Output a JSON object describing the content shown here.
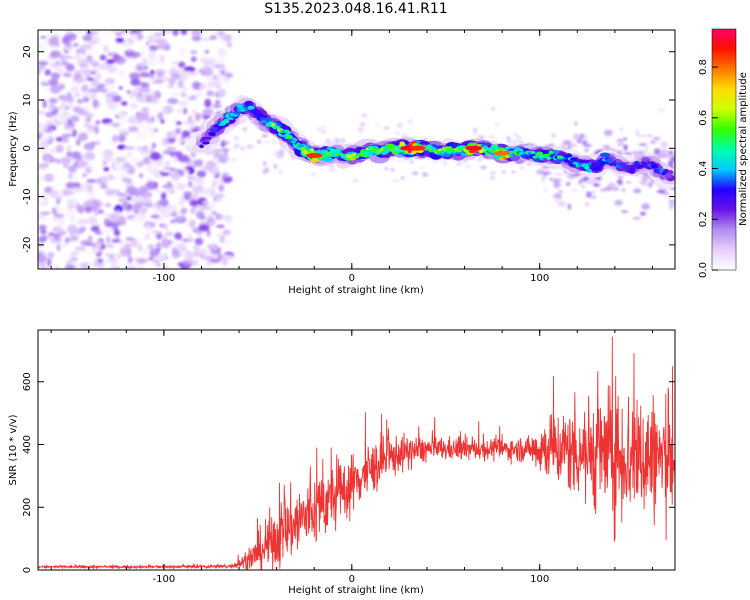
{
  "figure": {
    "title": "S135.2023.048.16.41.R11"
  },
  "colors": {
    "snr_line": "#ee3333",
    "frame": "#000000",
    "background": "#ffffff"
  },
  "chart_data": [
    {
      "type": "heatmap",
      "title": "S135.2023.048.16.41.R11",
      "xlabel": "Height of straight line (km)",
      "ylabel": "Frequency (Hz)",
      "xlim": [
        -167,
        172
      ],
      "ylim": [
        -25,
        24.5
      ],
      "x_ticks": [
        -100,
        0,
        100
      ],
      "x_tick_labels": [
        "-100",
        "0",
        "100"
      ],
      "y_ticks": [
        -20,
        -10,
        0,
        10,
        20
      ],
      "y_tick_labels": [
        "-20",
        "-10",
        "0",
        "10",
        "20"
      ],
      "grid": false,
      "colorbar": {
        "label": "Normalized spectral amplitude",
        "range": [
          0.0,
          0.95
        ],
        "ticks": [
          0.0,
          0.2,
          0.4,
          0.6,
          0.8
        ],
        "tick_labels": [
          "0.0",
          "0.2",
          "0.4",
          "0.6",
          "0.8"
        ],
        "colormap": [
          "#ffffff",
          "#e6d0fb",
          "#b28cf0",
          "#6a14e6",
          "#2200ff",
          "#00ccff",
          "#00ffaa",
          "#33ff00",
          "#ccff00",
          "#ffdd00",
          "#ff7700",
          "#ff1100",
          "#ff0066"
        ]
      },
      "signal_track": [
        {
          "x": -80,
          "y": 1.0,
          "a": 0.25
        },
        {
          "x": -75,
          "y": 3.0,
          "a": 0.3
        },
        {
          "x": -70,
          "y": 5.0,
          "a": 0.35
        },
        {
          "x": -65,
          "y": 6.5,
          "a": 0.4
        },
        {
          "x": -60,
          "y": 8.0,
          "a": 0.4
        },
        {
          "x": -55,
          "y": 8.5,
          "a": 0.35
        },
        {
          "x": -50,
          "y": 7.0,
          "a": 0.35
        },
        {
          "x": -45,
          "y": 5.5,
          "a": 0.4
        },
        {
          "x": -40,
          "y": 4.5,
          "a": 0.6
        },
        {
          "x": -35,
          "y": 3.0,
          "a": 0.45
        },
        {
          "x": -30,
          "y": 1.0,
          "a": 0.45
        },
        {
          "x": -25,
          "y": -0.5,
          "a": 0.5
        },
        {
          "x": -20,
          "y": -1.5,
          "a": 0.85
        },
        {
          "x": -15,
          "y": -1.5,
          "a": 0.55
        },
        {
          "x": -10,
          "y": -1.0,
          "a": 0.5
        },
        {
          "x": -5,
          "y": -1.5,
          "a": 0.45
        },
        {
          "x": 0,
          "y": -1.5,
          "a": 0.6
        },
        {
          "x": 5,
          "y": -1.0,
          "a": 0.5
        },
        {
          "x": 10,
          "y": -0.5,
          "a": 0.55
        },
        {
          "x": 15,
          "y": -0.5,
          "a": 0.5
        },
        {
          "x": 20,
          "y": 0.0,
          "a": 0.55
        },
        {
          "x": 25,
          "y": 0.0,
          "a": 0.6
        },
        {
          "x": 30,
          "y": 0.0,
          "a": 0.9
        },
        {
          "x": 35,
          "y": 0.0,
          "a": 0.85
        },
        {
          "x": 40,
          "y": 0.0,
          "a": 0.55
        },
        {
          "x": 45,
          "y": -0.5,
          "a": 0.5
        },
        {
          "x": 50,
          "y": -0.5,
          "a": 0.55
        },
        {
          "x": 55,
          "y": -0.5,
          "a": 0.5
        },
        {
          "x": 60,
          "y": -0.5,
          "a": 0.55
        },
        {
          "x": 65,
          "y": 0.0,
          "a": 0.9
        },
        {
          "x": 70,
          "y": 0.0,
          "a": 0.5
        },
        {
          "x": 75,
          "y": -0.5,
          "a": 0.5
        },
        {
          "x": 80,
          "y": -1.0,
          "a": 0.8
        },
        {
          "x": 85,
          "y": -1.0,
          "a": 0.45
        },
        {
          "x": 90,
          "y": -1.0,
          "a": 0.45
        },
        {
          "x": 95,
          "y": -1.0,
          "a": 0.4
        },
        {
          "x": 100,
          "y": -1.5,
          "a": 0.45
        },
        {
          "x": 105,
          "y": -1.5,
          "a": 0.45
        },
        {
          "x": 110,
          "y": -2.0,
          "a": 0.4
        },
        {
          "x": 115,
          "y": -2.0,
          "a": 0.4
        },
        {
          "x": 120,
          "y": -3.0,
          "a": 0.4
        },
        {
          "x": 125,
          "y": -3.5,
          "a": 0.4
        },
        {
          "x": 130,
          "y": -4.0,
          "a": 0.35
        },
        {
          "x": 135,
          "y": -2.0,
          "a": 0.35
        },
        {
          "x": 140,
          "y": -3.0,
          "a": 0.3
        },
        {
          "x": 145,
          "y": -4.0,
          "a": 0.3
        },
        {
          "x": 150,
          "y": -4.0,
          "a": 0.3
        },
        {
          "x": 155,
          "y": -3.0,
          "a": 0.3
        },
        {
          "x": 160,
          "y": -3.5,
          "a": 0.35
        },
        {
          "x": 165,
          "y": -5.0,
          "a": 0.3
        },
        {
          "x": 170,
          "y": -6.0,
          "a": 0.25
        }
      ],
      "noise_region": {
        "x_range": [
          -167,
          -65
        ],
        "y_range": [
          -25,
          24.5
        ],
        "typical_amplitude": 0.1
      }
    },
    {
      "type": "line",
      "xlabel": "Height of straight line (km)",
      "ylabel": "SNR (10 * v/v)",
      "xlim": [
        -167,
        172
      ],
      "ylim": [
        0,
        765
      ],
      "x_ticks": [
        -100,
        0,
        100
      ],
      "x_tick_labels": [
        "-100",
        "0",
        "100"
      ],
      "y_ticks": [
        0,
        200,
        400,
        600
      ],
      "y_tick_labels": [
        "0",
        "200",
        "400",
        "600"
      ],
      "grid": false,
      "series": [
        {
          "color": "#ee3333",
          "envelope": [
            {
              "x": -167,
              "mean": 10,
              "spread": 4
            },
            {
              "x": -100,
              "mean": 10,
              "spread": 4
            },
            {
              "x": -65,
              "mean": 12,
              "spread": 6
            },
            {
              "x": -55,
              "mean": 30,
              "spread": 30
            },
            {
              "x": -45,
              "mean": 80,
              "spread": 90
            },
            {
              "x": -35,
              "mean": 130,
              "spread": 110
            },
            {
              "x": -25,
              "mean": 170,
              "spread": 120
            },
            {
              "x": -15,
              "mean": 210,
              "spread": 110
            },
            {
              "x": -5,
              "mean": 250,
              "spread": 100
            },
            {
              "x": 5,
              "mean": 300,
              "spread": 90
            },
            {
              "x": 15,
              "mean": 340,
              "spread": 80
            },
            {
              "x": 25,
              "mean": 370,
              "spread": 60
            },
            {
              "x": 40,
              "mean": 385,
              "spread": 40
            },
            {
              "x": 60,
              "mean": 385,
              "spread": 35
            },
            {
              "x": 80,
              "mean": 385,
              "spread": 35
            },
            {
              "x": 95,
              "mean": 385,
              "spread": 40
            },
            {
              "x": 100,
              "mean": 390,
              "spread": 90
            },
            {
              "x": 120,
              "mean": 380,
              "spread": 150
            },
            {
              "x": 140,
              "mean": 370,
              "spread": 220
            },
            {
              "x": 160,
              "mean": 360,
              "spread": 200
            },
            {
              "x": 172,
              "mean": 350,
              "spread": 180
            }
          ]
        }
      ]
    }
  ]
}
